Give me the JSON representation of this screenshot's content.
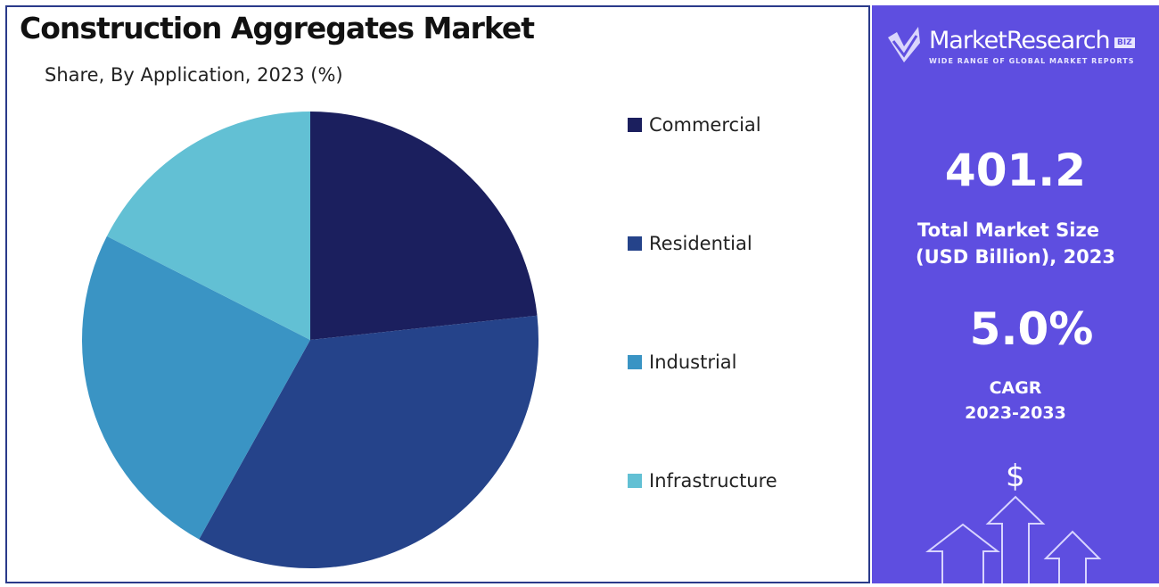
{
  "chart_data": {
    "type": "pie",
    "title": "Construction Aggregates Market",
    "subtitle": "Share, By Application, 2023 (%)",
    "categories": [
      "Commercial",
      "Residential",
      "Industrial",
      "Infrastructure"
    ],
    "values": [
      23.3,
      34.8,
      24.4,
      17.5
    ],
    "colors": [
      "#1b1f5e",
      "#25438a",
      "#3a94c4",
      "#62c0d4"
    ],
    "legend_position": "right"
  },
  "side_panel": {
    "logo_text": "MarketResearch",
    "logo_badge": "BIZ",
    "logo_tagline": "WIDE RANGE OF GLOBAL MARKET REPORTS",
    "market_size_value": "401.2",
    "market_size_label_1": "Total Market Size",
    "market_size_label_2": "(USD Billion), 2023",
    "cagr_value": "5.0%",
    "cagr_label_1": "CAGR",
    "cagr_label_2": "2023-2033",
    "dollar_symbol": "$",
    "background_color": "#5e4ee0"
  }
}
